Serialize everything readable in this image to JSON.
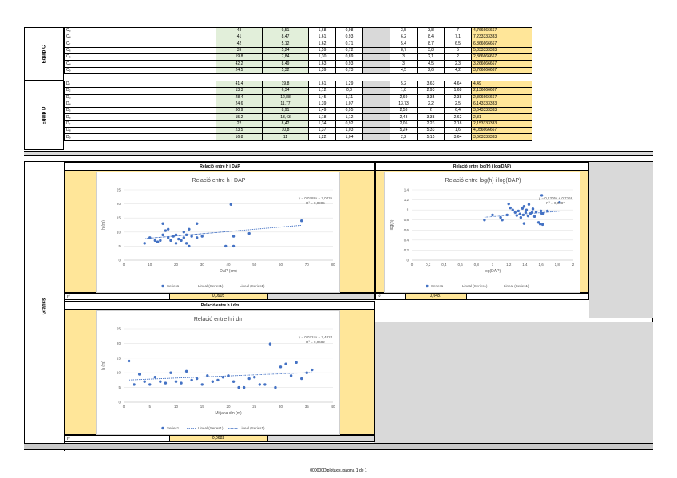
{
  "teams": [
    {
      "label": "Equip C",
      "rows": [
        [
          "C₅",
          "48",
          "9,51",
          "1,68",
          "0,98",
          "3,5",
          "3,8",
          "7",
          "4,766666667"
        ],
        [
          "C₄",
          "41",
          "8,47",
          "1,61",
          "0,93",
          "6,2",
          "8,4",
          "7,1",
          "7,233333333"
        ],
        [
          "C₇",
          "42",
          "5,12",
          "1,62",
          "0,71",
          "5,4",
          "8,7",
          "6,5",
          "6,866666667"
        ],
        [
          "C₆",
          "39",
          "5,24",
          "1,59",
          "0,72",
          "8,7",
          "3,8",
          "5",
          "5,833333333"
        ],
        [
          "C₃",
          "19,8",
          "7,84",
          "1,30",
          "0,89",
          "3",
          "2,1",
          "2",
          "2,366666667"
        ],
        [
          "C₄",
          "42,2",
          "8,49",
          "1,63",
          "0,93",
          "3",
          "4,5",
          "2,3",
          "3,266666667"
        ],
        [
          "C₉",
          "24,5",
          "5,32",
          "1,39",
          "0,73",
          "4,5",
          "2,6",
          "4,2",
          "3,766666667"
        ]
      ]
    },
    {
      "label": "Equip D",
      "rows": [
        [
          "D₁",
          "41,4",
          "19,8",
          "1,61",
          "1,29",
          "5,2",
          "3,63",
          "4,64",
          "4,49"
        ],
        [
          "D₂",
          "13,3",
          "6,34",
          "1,12",
          "0,8",
          "1,8",
          "2,93",
          "1,68",
          "2,136666667"
        ],
        [
          "D₃",
          "28,4",
          "12,88",
          "1,45",
          "1,11",
          "2,69",
          "3,35",
          "2,38",
          "2,806666667"
        ],
        [
          "D₄",
          "24,6",
          "11,77",
          "1,39",
          "1,07",
          "13,73",
          "2,2",
          "2,5",
          "6,143333333"
        ],
        [
          "D₅",
          "30,9",
          "8,91",
          "1,49",
          "0,95",
          "2,53",
          "2",
          "6,4",
          "3,643333333"
        ],
        [
          "D₆",
          "15,2",
          "13,43",
          "1,18",
          "1,12",
          "2,43",
          "3,38",
          "2,62",
          "2,81"
        ],
        [
          "D₇",
          "22",
          "8,42",
          "1,34",
          "0,92",
          "2,05",
          "2,23",
          "2,18",
          "2,153333333"
        ],
        [
          "D₈",
          "23,5",
          "10,8",
          "1,37",
          "1,03",
          "5,24",
          "5,33",
          "1,6",
          "4,056666667"
        ],
        [
          "D₉",
          "16,8",
          "11",
          "1,22",
          "1,04",
          "2,2",
          "5,15",
          "3,64",
          "3,663333333"
        ]
      ]
    }
  ],
  "grafics_label": "Gràfics",
  "charts": [
    {
      "header": "Relació entre h i DAP",
      "title": "Relació entre h i DAP",
      "xlabel": "DAP (cm)",
      "ylabel": "h (m)",
      "equation": "y = 0,0788x + 7,0435",
      "r2_text": "R² = 0,0905",
      "r2_label": "r²",
      "r2_value": "0,0905",
      "legend": [
        "Series1",
        "Lineal (Series1)",
        "Lineal (Series1)"
      ]
    },
    {
      "header": "Relació entre log(h) i log(DAP)",
      "title": "Relació entre log(h) i log(DAP)",
      "xlabel": "log(DAP)",
      "ylabel": "log(h)",
      "equation": "y = 0,1305x + 0,7368",
      "r2_text": "R² = 0,0487",
      "r2_label": "r²",
      "r2_value": "0,0487",
      "legend": [
        "Series1",
        "Lineal (Series1)",
        "Lineal (Series1)"
      ]
    },
    {
      "header": "Relació entre h i dm",
      "title": "Relació entre h i dm",
      "xlabel": "Mitjana dm (m)",
      "ylabel": "h (m)",
      "equation": "y = 0,0724x + 7,4824",
      "r2_text": "R² = 0,0682",
      "r2_label": "r²",
      "r2_value": "0,0682",
      "legend": [
        "Series1",
        "Lineal (Series1)",
        "Lineal (Series1)"
      ]
    }
  ],
  "chart_data": [
    {
      "type": "scatter",
      "xlim": [
        0,
        80
      ],
      "ylim": [
        0,
        25
      ],
      "xticks": [
        0,
        10,
        20,
        30,
        40,
        50,
        60,
        70,
        80
      ],
      "yticks": [
        0,
        5,
        10,
        15,
        20,
        25
      ],
      "trend": {
        "slope": 0.0788,
        "intercept": 7.0435,
        "x_range": [
          8,
          68
        ]
      },
      "points": [
        [
          8,
          6
        ],
        [
          10,
          8
        ],
        [
          12,
          7
        ],
        [
          13,
          6.5
        ],
        [
          14,
          7
        ],
        [
          15,
          13
        ],
        [
          15,
          9
        ],
        [
          16,
          10.5
        ],
        [
          17,
          8
        ],
        [
          17,
          11
        ],
        [
          18,
          7
        ],
        [
          19,
          8.5
        ],
        [
          20,
          9
        ],
        [
          20,
          6
        ],
        [
          21,
          7.5
        ],
        [
          22,
          7
        ],
        [
          23,
          8
        ],
        [
          23,
          10
        ],
        [
          24,
          6
        ],
        [
          24,
          9
        ],
        [
          25,
          5
        ],
        [
          25,
          11
        ],
        [
          26,
          8.5
        ],
        [
          28,
          8
        ],
        [
          28,
          13
        ],
        [
          30,
          8.5
        ],
        [
          39,
          5
        ],
        [
          41,
          19.8
        ],
        [
          42,
          5
        ],
        [
          42,
          8.5
        ],
        [
          48,
          9.5
        ],
        [
          68,
          14
        ]
      ]
    },
    {
      "type": "scatter",
      "xlim": [
        0,
        2
      ],
      "ylim": [
        0,
        1.4
      ],
      "xticks": [
        0,
        0.2,
        0.4,
        0.6,
        0.8,
        1,
        1.2,
        1.4,
        1.6,
        1.8,
        2
      ],
      "yticks": [
        0,
        0.2,
        0.4,
        0.6,
        0.8,
        1,
        1.2,
        1.4
      ],
      "trend": {
        "slope": 0.1305,
        "intercept": 0.7368,
        "x_range": [
          0.9,
          1.83
        ]
      },
      "points": [
        [
          0.9,
          0.8
        ],
        [
          1.0,
          0.9
        ],
        [
          1.1,
          0.85
        ],
        [
          1.12,
          0.8
        ],
        [
          1.18,
          0.9
        ],
        [
          1.2,
          1.12
        ],
        [
          1.22,
          1.04
        ],
        [
          1.25,
          1.0
        ],
        [
          1.28,
          0.95
        ],
        [
          1.3,
          0.89
        ],
        [
          1.32,
          0.98
        ],
        [
          1.34,
          0.92
        ],
        [
          1.35,
          0.85
        ],
        [
          1.37,
          1.03
        ],
        [
          1.38,
          0.9
        ],
        [
          1.39,
          0.73
        ],
        [
          1.39,
          1.07
        ],
        [
          1.41,
          0.95
        ],
        [
          1.42,
          1.0
        ],
        [
          1.44,
          0.88
        ],
        [
          1.45,
          1.11
        ],
        [
          1.47,
          0.93
        ],
        [
          1.49,
          0.95
        ],
        [
          1.5,
          1.02
        ],
        [
          1.52,
          0.87
        ],
        [
          1.54,
          0.96
        ],
        [
          1.57,
          0.75
        ],
        [
          1.59,
          0.72
        ],
        [
          1.6,
          0.98
        ],
        [
          1.61,
          1.29
        ],
        [
          1.61,
          0.93
        ],
        [
          1.62,
          0.71
        ],
        [
          1.63,
          0.93
        ],
        [
          1.68,
          0.98
        ],
        [
          1.83,
          1.15
        ]
      ]
    },
    {
      "type": "scatter",
      "xlim": [
        0,
        40
      ],
      "ylim": [
        0,
        25
      ],
      "xticks": [
        0,
        5,
        10,
        15,
        20,
        25,
        30,
        35,
        40
      ],
      "yticks": [
        0,
        5,
        10,
        15,
        20,
        25
      ],
      "trend": {
        "slope": 0.0724,
        "intercept": 7.4824,
        "x_range": [
          1,
          36
        ]
      },
      "points": [
        [
          1,
          14
        ],
        [
          2,
          6
        ],
        [
          3,
          9.5
        ],
        [
          4,
          7
        ],
        [
          5,
          6
        ],
        [
          6,
          8.5
        ],
        [
          7,
          7
        ],
        [
          8,
          6.5
        ],
        [
          9,
          10
        ],
        [
          10,
          7
        ],
        [
          11,
          6.5
        ],
        [
          12,
          10.5
        ],
        [
          13,
          7.5
        ],
        [
          14,
          8
        ],
        [
          15,
          6
        ],
        [
          16,
          9
        ],
        [
          17,
          7
        ],
        [
          18,
          7.5
        ],
        [
          19,
          8.5
        ],
        [
          20,
          9
        ],
        [
          21,
          7
        ],
        [
          22,
          5
        ],
        [
          23,
          5
        ],
        [
          24,
          8
        ],
        [
          25,
          8.5
        ],
        [
          26,
          6
        ],
        [
          27,
          6
        ],
        [
          28,
          19.8
        ],
        [
          29,
          5
        ],
        [
          30,
          12
        ],
        [
          31,
          13
        ],
        [
          32,
          9
        ],
        [
          33,
          13.5
        ],
        [
          34,
          8
        ],
        [
          35,
          10
        ],
        [
          36,
          11
        ]
      ]
    }
  ],
  "footer": "000000Diplotaxis, pàgina 1 de 1"
}
